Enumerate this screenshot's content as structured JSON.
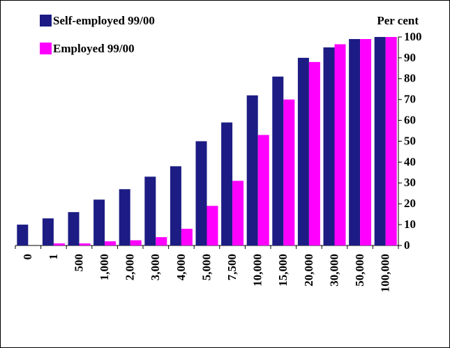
{
  "chart_data": {
    "type": "bar",
    "y_axis_label": "Per cent",
    "categories": [
      "0",
      "1",
      "500",
      "1,000",
      "2,000",
      "3,000",
      "4,000",
      "5,000",
      "7,500",
      "10,000",
      "15,000",
      "20,000",
      "30,000",
      "50,000",
      "100,000"
    ],
    "series": [
      {
        "name": "Self-employed 99/00",
        "color": "#1c1c84",
        "values": [
          10,
          13,
          16,
          22,
          27,
          33,
          38,
          50,
          59,
          72,
          81,
          90,
          95,
          99,
          100
        ]
      },
      {
        "name": "Employed 99/00",
        "color": "#ff00ff",
        "values": [
          0,
          1,
          1,
          2,
          2.5,
          4,
          8,
          19,
          31,
          53,
          70,
          88,
          96.5,
          99,
          100
        ]
      }
    ],
    "ylim": [
      0,
      100
    ],
    "yticks": [
      0,
      10,
      20,
      30,
      40,
      50,
      60,
      70,
      80,
      90,
      100
    ],
    "legend": "top-left"
  }
}
